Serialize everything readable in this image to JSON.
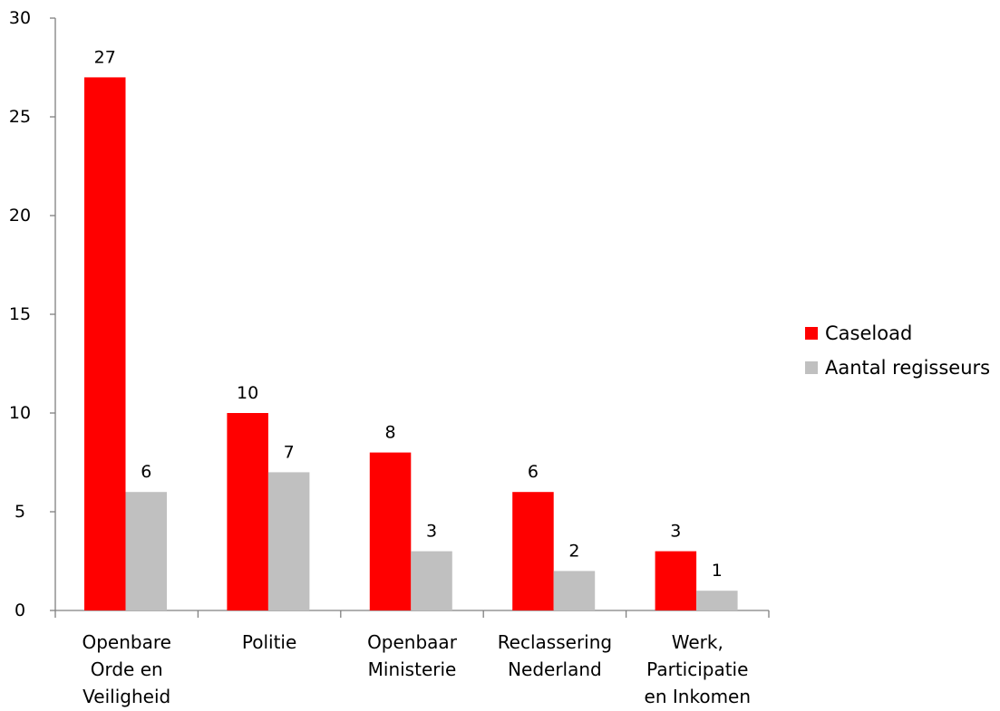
{
  "chart_data": {
    "type": "bar",
    "categories": [
      [
        "Openbare",
        "Orde en",
        "Veiligheid"
      ],
      [
        "Politie"
      ],
      [
        "Openbaar",
        "Ministerie"
      ],
      [
        "Reclassering",
        "Nederland"
      ],
      [
        "Werk,",
        "Participatie",
        "en Inkomen"
      ]
    ],
    "series": [
      {
        "name": "Caseload",
        "color": "#ff0000",
        "values": [
          27,
          10,
          8,
          6,
          3
        ]
      },
      {
        "name": "Aantal regisseurs",
        "color": "#c0c0c0",
        "values": [
          6,
          7,
          3,
          2,
          1
        ]
      }
    ],
    "ylim": [
      0,
      30
    ],
    "yticks": [
      0,
      5,
      10,
      15,
      20,
      25,
      30
    ],
    "grid": false,
    "legend_position": "right",
    "data_labels": true
  }
}
